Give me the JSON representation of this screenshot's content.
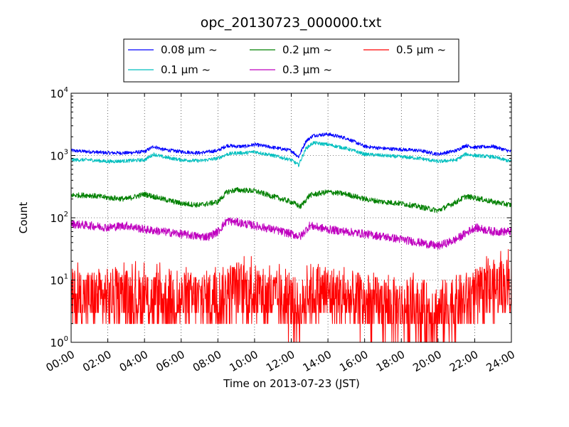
{
  "chart_data": {
    "type": "line",
    "title": "opc_20130723_000000.txt",
    "xlabel": "Time on 2013-07-23 (JST)",
    "ylabel": "Count",
    "x_range_hours": [
      0,
      24
    ],
    "x_ticks": [
      "00:00",
      "02:00",
      "04:00",
      "06:00",
      "08:00",
      "10:00",
      "12:00",
      "14:00",
      "16:00",
      "18:00",
      "20:00",
      "22:00",
      "24:00"
    ],
    "y_scale": "log",
    "ylim": [
      1,
      10000
    ],
    "y_ticks": [
      {
        "base": "10",
        "exp": "0"
      },
      {
        "base": "10",
        "exp": "1"
      },
      {
        "base": "10",
        "exp": "2"
      },
      {
        "base": "10",
        "exp": "3"
      },
      {
        "base": "10",
        "exp": "4"
      }
    ],
    "grid": true,
    "legend_position": "top-center",
    "series": [
      {
        "name": "0.08 μm ~",
        "color": "#0000ff",
        "noise": 0.03,
        "x": [
          0,
          1,
          2,
          3,
          4,
          4.5,
          5,
          6,
          7,
          8,
          8.5,
          9,
          9.5,
          10,
          11,
          12,
          12.4,
          12.8,
          13.2,
          14,
          15,
          16,
          17,
          18,
          19,
          20,
          21,
          21.5,
          22,
          23,
          24
        ],
        "values": [
          1200,
          1150,
          1100,
          1100,
          1150,
          1400,
          1250,
          1150,
          1100,
          1200,
          1450,
          1400,
          1400,
          1500,
          1350,
          1200,
          950,
          1700,
          2100,
          2200,
          1900,
          1400,
          1300,
          1250,
          1200,
          1050,
          1200,
          1450,
          1350,
          1400,
          1150
        ]
      },
      {
        "name": "0.1 μm ~",
        "color": "#00bfbf",
        "noise": 0.03,
        "x": [
          0,
          1,
          2,
          3,
          4,
          4.5,
          5,
          6,
          7,
          8,
          8.5,
          9,
          9.5,
          10,
          11,
          12,
          12.4,
          12.8,
          13.2,
          14,
          15,
          16,
          17,
          18,
          19,
          20,
          21,
          21.5,
          22,
          23,
          24
        ],
        "values": [
          850,
          850,
          800,
          820,
          850,
          1050,
          950,
          850,
          820,
          900,
          1050,
          1100,
          1100,
          1150,
          1000,
          850,
          700,
          1300,
          1600,
          1500,
          1300,
          1050,
          1000,
          950,
          900,
          800,
          850,
          1050,
          1000,
          950,
          800
        ]
      },
      {
        "name": "0.2 μm ~",
        "color": "#008000",
        "noise": 0.045,
        "x": [
          0,
          1,
          2,
          3,
          4,
          5,
          6,
          7,
          8,
          8.5,
          9,
          10,
          11,
          12,
          12.5,
          13,
          14,
          15,
          16,
          17,
          18,
          19,
          20,
          21,
          21.5,
          22,
          23,
          24
        ],
        "values": [
          230,
          230,
          210,
          200,
          240,
          200,
          170,
          160,
          180,
          260,
          280,
          270,
          220,
          180,
          150,
          230,
          260,
          240,
          200,
          180,
          170,
          150,
          130,
          180,
          220,
          210,
          180,
          160
        ]
      },
      {
        "name": "0.3 μm ~",
        "color": "#bf00bf",
        "noise": 0.07,
        "x": [
          0,
          1,
          2,
          3,
          4,
          5,
          6,
          7,
          7.5,
          8,
          8.5,
          9,
          10,
          11,
          12,
          12.5,
          13,
          14,
          15,
          16,
          17,
          18,
          19,
          20,
          21,
          22,
          23,
          24
        ],
        "values": [
          80,
          75,
          70,
          75,
          65,
          60,
          55,
          50,
          50,
          60,
          90,
          85,
          75,
          65,
          55,
          50,
          75,
          65,
          60,
          55,
          50,
          45,
          40,
          35,
          45,
          70,
          60,
          60
        ]
      },
      {
        "name": "0.5 μm ~",
        "color": "#ff0000",
        "noise": 0.28,
        "x": [
          0,
          2,
          4,
          6,
          8,
          9,
          10,
          12,
          12.5,
          13,
          14,
          16,
          18,
          20,
          21,
          22,
          23,
          24
        ],
        "values": [
          5,
          5,
          5,
          4.5,
          5,
          7,
          6,
          4,
          3,
          6,
          6,
          4,
          3.5,
          3,
          4,
          5,
          7,
          8
        ]
      }
    ]
  }
}
